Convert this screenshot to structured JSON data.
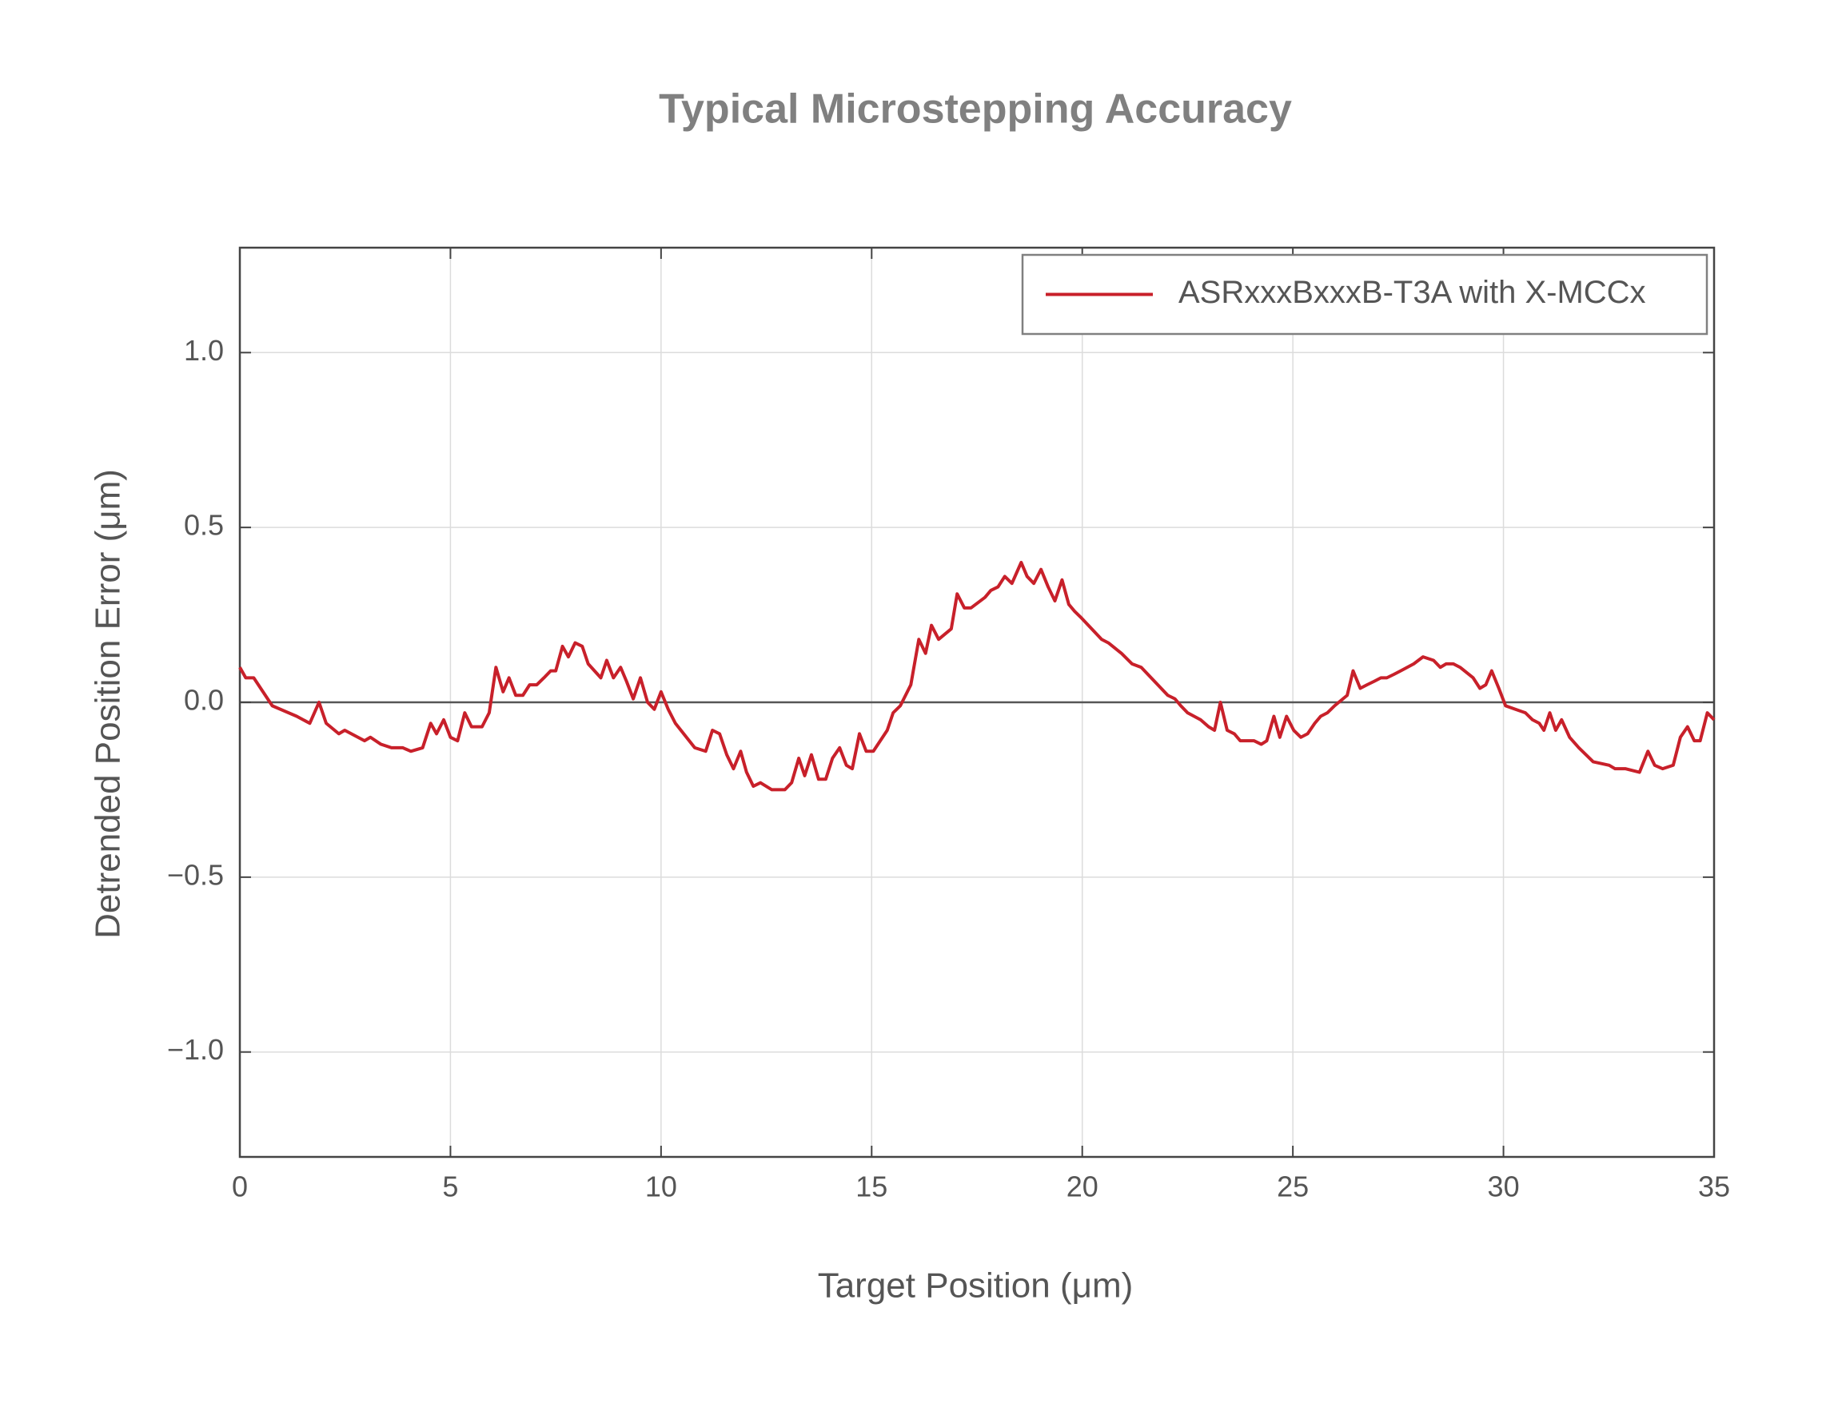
{
  "chart_data": {
    "type": "line",
    "title": "Typical Microstepping Accuracy",
    "xlabel": "Target Position (μm)",
    "ylabel": "Detrended Position Error (μm)",
    "x": [
      0,
      0.14,
      0.33,
      0.55,
      0.77,
      1.35,
      1.66,
      1.88,
      2.05,
      2.35,
      2.49,
      2.96,
      3.1,
      3.35,
      3.6,
      3.87,
      4.06,
      4.34,
      4.53,
      4.67,
      4.84,
      5.0,
      5.17,
      5.34,
      5.5,
      5.75,
      5.92,
      6.08,
      6.25,
      6.39,
      6.55,
      6.72,
      6.88,
      7.05,
      7.22,
      7.38,
      7.5,
      7.66,
      7.8,
      7.96,
      8.13,
      8.27,
      8.57,
      8.71,
      8.87,
      9.04,
      9.18,
      9.34,
      9.51,
      9.68,
      9.84,
      10.0,
      10.17,
      10.34,
      10.8,
      11.06,
      11.22,
      11.39,
      11.56,
      11.72,
      11.89,
      12.03,
      12.19,
      12.36,
      12.63,
      12.94,
      13.1,
      13.27,
      13.41,
      13.57,
      13.74,
      13.91,
      14.07,
      14.24,
      14.4,
      14.54,
      14.71,
      14.87,
      15.04,
      15.37,
      15.51,
      15.68,
      15.93,
      16.12,
      16.28,
      16.42,
      16.59,
      16.89,
      17.03,
      17.2,
      17.36,
      17.69,
      17.83,
      18.0,
      18.16,
      18.33,
      18.55,
      18.69,
      18.85,
      19.02,
      19.19,
      19.35,
      19.52,
      19.68,
      19.82,
      19.99,
      20.46,
      20.62,
      20.93,
      21.18,
      21.4,
      22.03,
      22.2,
      22.34,
      22.5,
      22.81,
      23.0,
      23.14,
      23.28,
      23.44,
      23.61,
      23.75,
      24.08,
      24.25,
      24.38,
      24.55,
      24.69,
      24.85,
      25.02,
      25.19,
      25.35,
      25.52,
      25.66,
      25.82,
      25.99,
      26.29,
      26.43,
      26.6,
      26.76,
      26.93,
      27.09,
      27.23,
      27.4,
      27.56,
      27.87,
      28.09,
      28.34,
      28.5,
      28.64,
      28.81,
      28.97,
      29.28,
      29.44,
      29.58,
      29.72,
      29.89,
      30.05,
      30.52,
      30.69,
      30.85,
      30.96,
      31.1,
      31.24,
      31.38,
      31.57,
      31.79,
      32.13,
      32.51,
      32.65,
      32.9,
      33.23,
      33.43,
      33.59,
      33.78,
      34.03,
      34.2,
      34.37,
      34.53,
      34.67,
      34.84,
      35.0
    ],
    "series": [
      {
        "name": "ASRxxxBxxxB-T3A with X-MCCx",
        "color": "#c8202a",
        "values": [
          0.1,
          0.07,
          0.07,
          0.03,
          -0.01,
          -0.04,
          -0.06,
          0.0,
          -0.06,
          -0.09,
          -0.08,
          -0.11,
          -0.1,
          -0.12,
          -0.13,
          -0.13,
          -0.14,
          -0.13,
          -0.06,
          -0.09,
          -0.05,
          -0.1,
          -0.11,
          -0.03,
          -0.07,
          -0.07,
          -0.03,
          0.1,
          0.03,
          0.07,
          0.02,
          0.02,
          0.05,
          0.05,
          0.07,
          0.09,
          0.09,
          0.16,
          0.13,
          0.17,
          0.16,
          0.11,
          0.07,
          0.12,
          0.07,
          0.1,
          0.06,
          0.01,
          0.07,
          0.0,
          -0.02,
          0.03,
          -0.02,
          -0.06,
          -0.13,
          -0.14,
          -0.08,
          -0.09,
          -0.15,
          -0.19,
          -0.14,
          -0.2,
          -0.24,
          -0.23,
          -0.25,
          -0.25,
          -0.23,
          -0.16,
          -0.21,
          -0.15,
          -0.22,
          -0.22,
          -0.16,
          -0.13,
          -0.18,
          -0.19,
          -0.09,
          -0.14,
          -0.14,
          -0.08,
          -0.03,
          -0.01,
          0.05,
          0.18,
          0.14,
          0.22,
          0.18,
          0.21,
          0.31,
          0.27,
          0.27,
          0.3,
          0.32,
          0.33,
          0.36,
          0.34,
          0.4,
          0.36,
          0.34,
          0.38,
          0.33,
          0.29,
          0.35,
          0.28,
          0.26,
          0.24,
          0.18,
          0.17,
          0.14,
          0.11,
          0.1,
          0.02,
          0.01,
          -0.01,
          -0.03,
          -0.05,
          -0.07,
          -0.08,
          0.0,
          -0.08,
          -0.09,
          -0.11,
          -0.11,
          -0.12,
          -0.11,
          -0.04,
          -0.1,
          -0.04,
          -0.08,
          -0.1,
          -0.09,
          -0.06,
          -0.04,
          -0.03,
          -0.01,
          0.02,
          0.09,
          0.04,
          0.05,
          0.06,
          0.07,
          0.07,
          0.08,
          0.09,
          0.11,
          0.13,
          0.12,
          0.1,
          0.11,
          0.11,
          0.1,
          0.07,
          0.04,
          0.05,
          0.09,
          0.04,
          -0.01,
          -0.03,
          -0.05,
          -0.06,
          -0.08,
          -0.03,
          -0.08,
          -0.05,
          -0.1,
          -0.13,
          -0.17,
          -0.18,
          -0.19,
          -0.19,
          -0.2,
          -0.14,
          -0.18,
          -0.19,
          -0.18,
          -0.1,
          -0.07,
          -0.11,
          -0.11,
          -0.03,
          -0.05
        ]
      }
    ],
    "xlim": [
      0,
      35
    ],
    "xticks": [
      0,
      5,
      10,
      15,
      20,
      25,
      30,
      35
    ],
    "ylim": [
      -1.3,
      1.3
    ],
    "yticks": [
      {
        "value": -1.0,
        "label": "−1.0"
      },
      {
        "value": -0.5,
        "label": "−0.5"
      },
      {
        "value": 0,
        "label": "0.0"
      },
      0.5,
      {
        "value": 1.0,
        "label": "1.0"
      }
    ],
    "grid": true,
    "legend": "upper right"
  }
}
